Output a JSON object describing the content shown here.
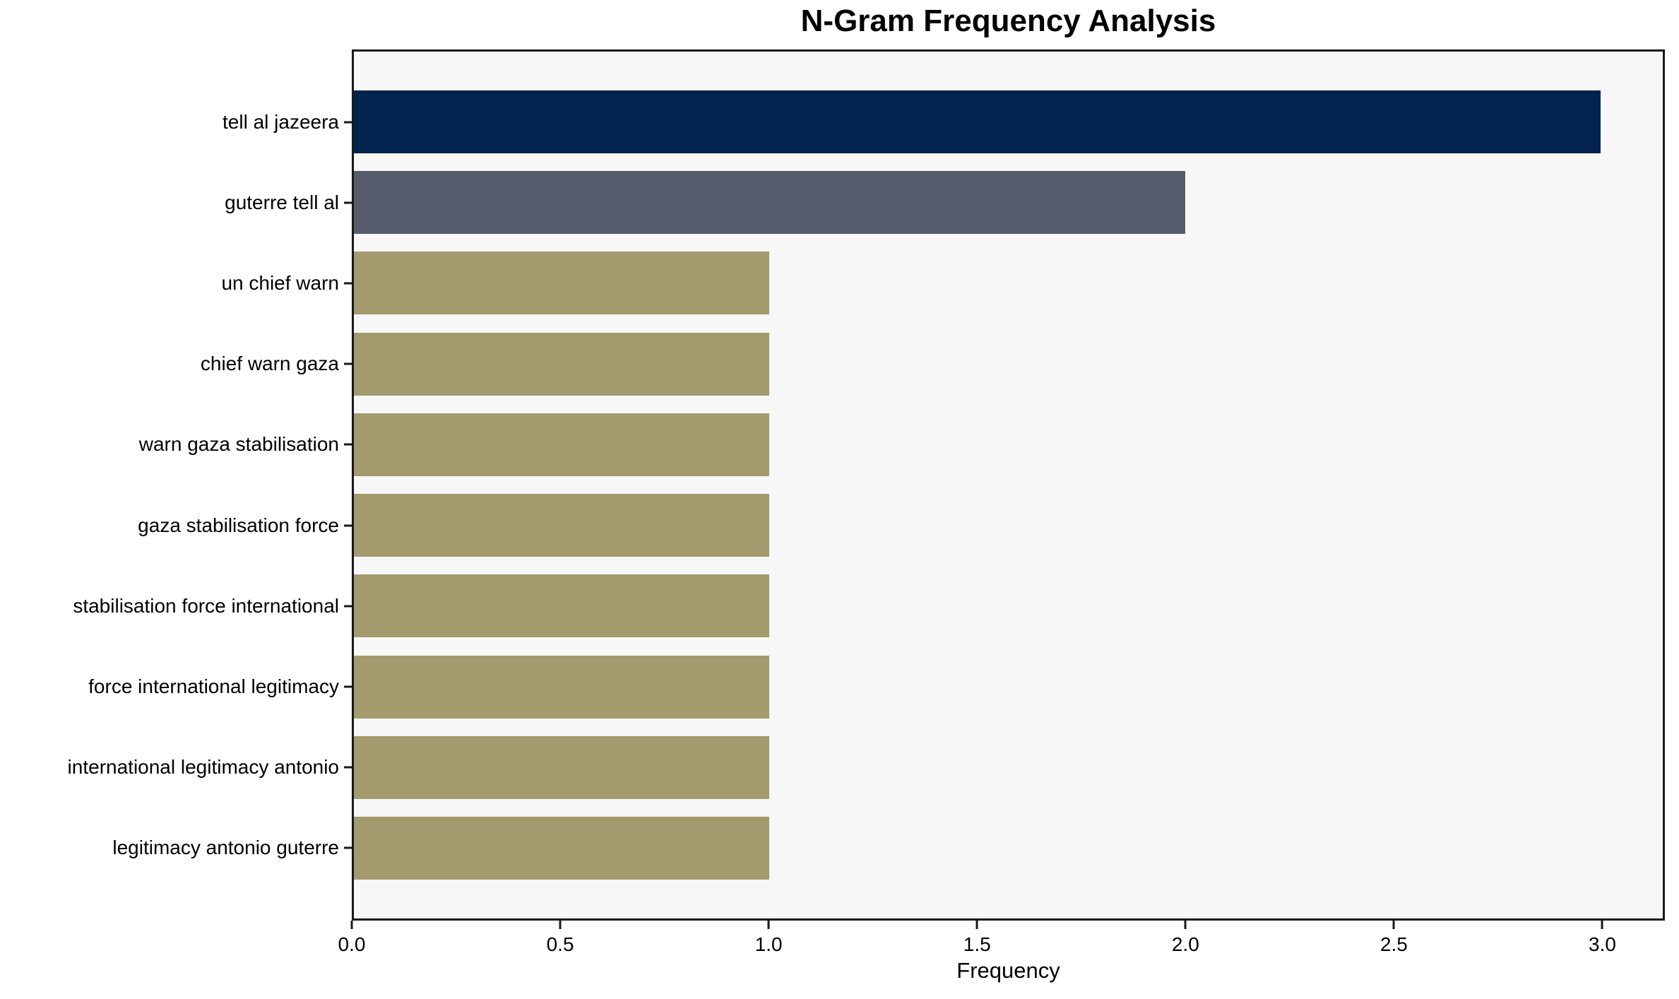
{
  "chart_data": {
    "type": "bar",
    "orientation": "horizontal",
    "title": "N-Gram Frequency Analysis",
    "xlabel": "Frequency",
    "ylabel": "",
    "categories": [
      "tell al jazeera",
      "guterre tell al",
      "un chief warn",
      "chief warn gaza",
      "warn gaza stabilisation",
      "gaza stabilisation force",
      "stabilisation force international",
      "force international legitimacy",
      "international legitimacy antonio",
      "legitimacy antonio guterre"
    ],
    "values": [
      3,
      2,
      1,
      1,
      1,
      1,
      1,
      1,
      1,
      1
    ],
    "xlim": [
      0,
      3.15
    ],
    "x_tick_labels": [
      "0.0",
      "0.5",
      "1.0",
      "1.5",
      "2.0",
      "2.5",
      "3.0"
    ],
    "bar_colors": [
      "#02234e",
      "#575c6c",
      "#a39a6d",
      "#a39a6d",
      "#a39a6d",
      "#a39a6d",
      "#a39a6d",
      "#a39a6d",
      "#a39a6d",
      "#a39a6d"
    ],
    "plot_background": "#f7f7f7",
    "figure_background": "#ffffff",
    "spine_color": "#1a1a1a",
    "grid": false,
    "legend": false
  }
}
